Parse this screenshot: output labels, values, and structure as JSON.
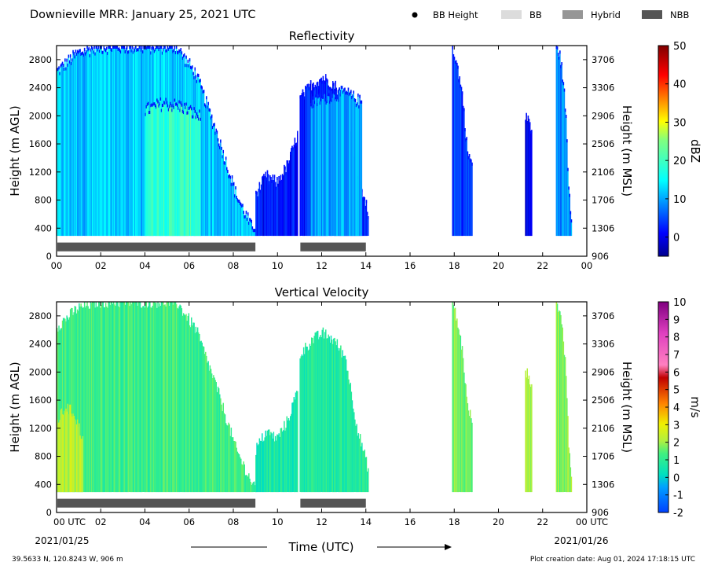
{
  "header": {
    "title": "Downieville MRR:  January 25, 2021 UTC",
    "legend": [
      {
        "label": "BB Height",
        "marker": "dot",
        "color": "#000000"
      },
      {
        "label": "BB",
        "marker": "box",
        "color": "#dcdcdc"
      },
      {
        "label": "Hybrid",
        "marker": "box",
        "color": "#969696"
      },
      {
        "label": "NBB",
        "marker": "box",
        "color": "#555555"
      }
    ]
  },
  "footer": {
    "location": "39.5633 N, 120.8243 W, 906 m",
    "creation": "Plot creation date: Aug 01, 2024 17:18:15 UTC",
    "xlabel": "Time (UTC)",
    "start_date": "2021/01/25",
    "end_date": "2021/01/26"
  },
  "chart_data": [
    {
      "type": "heatmap",
      "title": "Reflectivity",
      "ylabel": "Height (m AGL)",
      "y2label": "Height (m MSL)",
      "xlim": [
        0,
        24
      ],
      "ylim": [
        0,
        3000
      ],
      "x_ticks": [
        "00",
        "02",
        "04",
        "06",
        "08",
        "10",
        "12",
        "14",
        "16",
        "18",
        "20",
        "22",
        "00"
      ],
      "y_ticks": [
        0,
        400,
        800,
        1200,
        1600,
        2000,
        2400,
        2800
      ],
      "y2_ticks": [
        906,
        1306,
        1706,
        2106,
        2506,
        2906,
        3306,
        3706
      ],
      "colorbar": {
        "label": "dBZ",
        "range": [
          -5,
          50
        ],
        "ticks": [
          0,
          10,
          20,
          30,
          40,
          50
        ],
        "colormap": "jet"
      },
      "nbb_bars": [
        [
          0,
          9.0
        ],
        [
          11.0,
          14.0
        ]
      ],
      "regions": [
        {
          "x": [
            0.0,
            9.0
          ],
          "top": [
            2650,
            2900,
            3000,
            3000,
            3000,
            3000,
            3000,
            2600,
            1800,
            900,
            300
          ],
          "value": 12
        },
        {
          "x": [
            4.0,
            6.5
          ],
          "top": [
            2100,
            2200,
            2150,
            2000
          ],
          "value": 19
        },
        {
          "x": [
            9.0,
            10.9
          ],
          "top": [
            900,
            1150,
            1050,
            1300,
            1750
          ],
          "value": 2
        },
        {
          "x": [
            11.0,
            14.1
          ],
          "top": [
            2250,
            2450,
            2550,
            2450,
            2200,
            1200,
            600
          ],
          "value": 3
        },
        {
          "x": [
            11.5,
            13.8
          ],
          "top": [
            2200,
            2300,
            2350,
            2200
          ],
          "value": 10
        },
        {
          "x": [
            17.9,
            18.8
          ],
          "top": [
            3000,
            2700,
            2300,
            1500,
            1300
          ],
          "value": 4
        },
        {
          "x": [
            21.2,
            21.5
          ],
          "top": [
            1950,
            2000,
            1700
          ],
          "value": 0
        },
        {
          "x": [
            22.6,
            23.3
          ],
          "top": [
            3000,
            2900,
            2600,
            2100,
            1000,
            500
          ],
          "value": 9
        }
      ]
    },
    {
      "type": "heatmap",
      "title": "Vertical Velocity",
      "ylabel": "Height (m AGL)",
      "y2label": "Height (m MSL)",
      "xlim": [
        0,
        24
      ],
      "ylim": [
        0,
        3000
      ],
      "x_ticks": [
        "00 UTC",
        "02",
        "04",
        "06",
        "08",
        "10",
        "12",
        "14",
        "16",
        "18",
        "20",
        "22",
        "00 UTC"
      ],
      "y_ticks": [
        0,
        400,
        800,
        1200,
        1600,
        2000,
        2400,
        2800
      ],
      "y2_ticks": [
        906,
        1306,
        1706,
        2106,
        2506,
        2906,
        3306,
        3706
      ],
      "colorbar": {
        "label": "m/s",
        "range": [
          -2,
          10
        ],
        "ticks": [
          -2,
          -1,
          0,
          1,
          2,
          3,
          4,
          5,
          6,
          7,
          8,
          9,
          10
        ],
        "colormap": "velocity"
      },
      "nbb_bars": [
        [
          0,
          9.0
        ],
        [
          11.0,
          14.0
        ]
      ],
      "regions": [
        {
          "x": [
            0.0,
            9.0
          ],
          "top": [
            2650,
            2900,
            3000,
            3000,
            3000,
            3000,
            3000,
            2600,
            1800,
            900,
            300
          ],
          "value": 1.2
        },
        {
          "x": [
            0.0,
            1.2
          ],
          "top": [
            1300,
            1500,
            1400,
            1000
          ],
          "value": 2.3
        },
        {
          "x": [
            9.0,
            10.9
          ],
          "top": [
            900,
            1150,
            1050,
            1300,
            1750
          ],
          "value": 0.6
        },
        {
          "x": [
            11.0,
            14.1
          ],
          "top": [
            2250,
            2450,
            2550,
            2450,
            2200,
            1200,
            600
          ],
          "value": 0.8
        },
        {
          "x": [
            17.9,
            18.8
          ],
          "top": [
            3000,
            2700,
            2300,
            1500,
            1300
          ],
          "value": 1.6
        },
        {
          "x": [
            21.2,
            21.5
          ],
          "top": [
            1950,
            2000,
            1700
          ],
          "value": 1.8
        },
        {
          "x": [
            22.6,
            23.3
          ],
          "top": [
            3000,
            2900,
            2600,
            2100,
            1000,
            500
          ],
          "value": 1.9
        }
      ]
    }
  ]
}
